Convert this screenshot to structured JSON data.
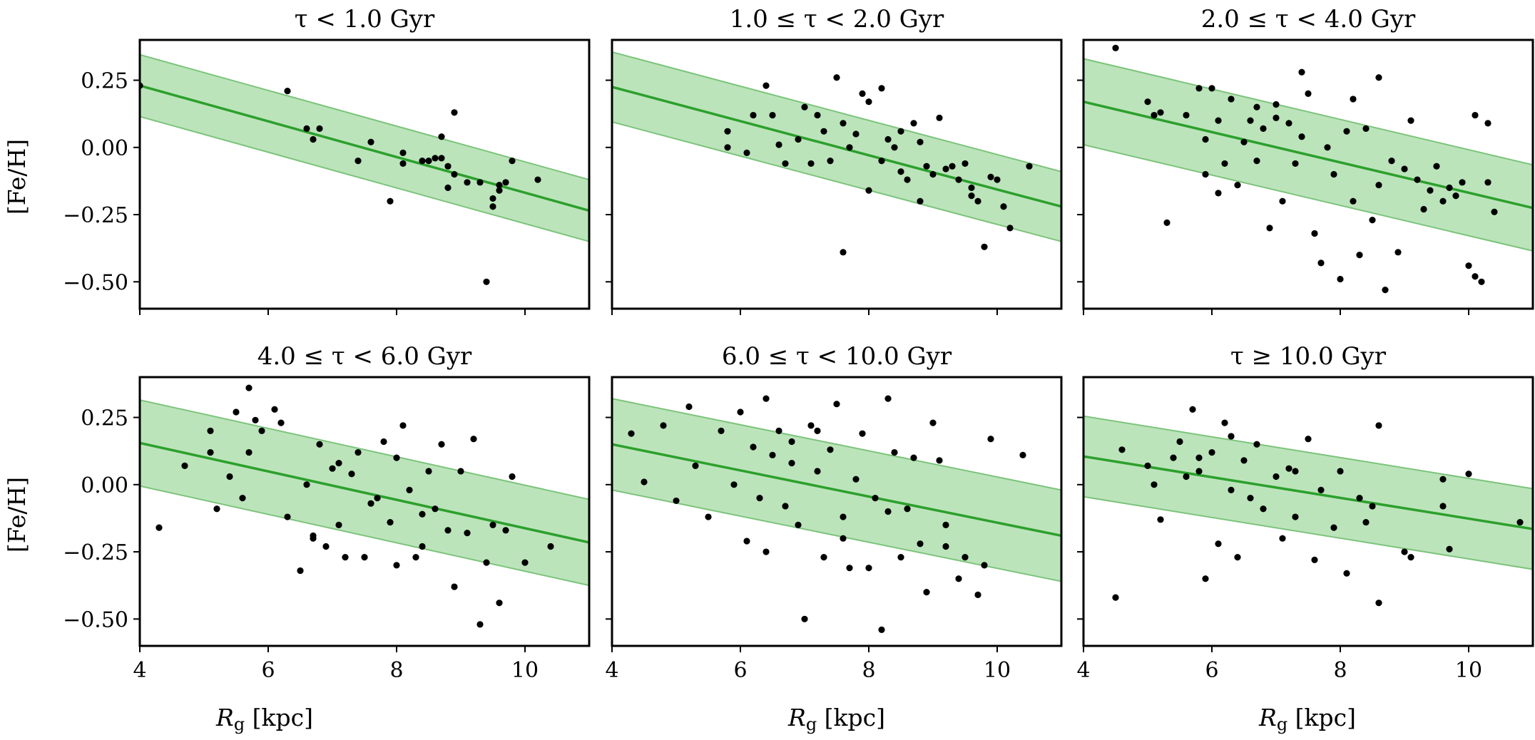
{
  "chart_data": {
    "type": "scatter",
    "layout": "2x3 grid, shared x-axis per column, shared y-axis per row",
    "xlabel": "R_g [kpc]",
    "ylabel": "[Fe/H]",
    "xlim": [
      4,
      11
    ],
    "ylim": [
      -0.6,
      0.4
    ],
    "xticks": [
      4,
      6,
      8,
      10
    ],
    "yticks": [
      -0.5,
      -0.25,
      0.0,
      0.25
    ],
    "ytick_labels": [
      "−0.50",
      "−0.25",
      "0.00",
      "0.25"
    ],
    "grid": false,
    "legend": "none",
    "colors": {
      "fit_line": "#2ca02c",
      "band": "#98d597",
      "points": "#000000"
    },
    "panels": [
      {
        "title": "τ < 1.0 Gyr",
        "fit": {
          "x": [
            4,
            11
          ],
          "y": [
            0.23,
            -0.235
          ],
          "band_halfwidth": 0.115
        },
        "points": [
          [
            4.0,
            0.23
          ],
          [
            6.3,
            0.21
          ],
          [
            6.6,
            0.07
          ],
          [
            6.8,
            0.07
          ],
          [
            6.7,
            0.03
          ],
          [
            7.4,
            -0.05
          ],
          [
            7.9,
            -0.2
          ],
          [
            7.6,
            0.02
          ],
          [
            8.1,
            -0.06
          ],
          [
            8.1,
            -0.02
          ],
          [
            8.4,
            -0.05
          ],
          [
            8.5,
            -0.05
          ],
          [
            8.6,
            -0.04
          ],
          [
            8.7,
            -0.04
          ],
          [
            8.7,
            0.04
          ],
          [
            8.8,
            -0.07
          ],
          [
            8.8,
            -0.15
          ],
          [
            8.9,
            -0.1
          ],
          [
            8.9,
            0.13
          ],
          [
            9.1,
            -0.13
          ],
          [
            9.3,
            -0.13
          ],
          [
            9.4,
            -0.5
          ],
          [
            9.5,
            -0.19
          ],
          [
            9.5,
            -0.22
          ],
          [
            9.6,
            -0.16
          ],
          [
            9.6,
            -0.14
          ],
          [
            9.7,
            -0.13
          ],
          [
            9.8,
            -0.05
          ],
          [
            10.2,
            -0.12
          ]
        ]
      },
      {
        "title": "1.0 ≤ τ < 2.0 Gyr",
        "fit": {
          "x": [
            4,
            11
          ],
          "y": [
            0.225,
            -0.22
          ],
          "band_halfwidth": 0.13
        },
        "points": [
          [
            5.8,
            0.06
          ],
          [
            5.8,
            0.0
          ],
          [
            6.4,
            0.23
          ],
          [
            6.5,
            0.12
          ],
          [
            6.6,
            0.01
          ],
          [
            7.0,
            0.15
          ],
          [
            7.2,
            0.12
          ],
          [
            7.3,
            0.06
          ],
          [
            7.5,
            0.26
          ],
          [
            7.6,
            0.09
          ],
          [
            7.7,
            0.0
          ],
          [
            7.8,
            0.05
          ],
          [
            7.9,
            0.2
          ],
          [
            8.0,
            0.17
          ],
          [
            8.2,
            0.22
          ],
          [
            8.2,
            -0.05
          ],
          [
            8.3,
            0.03
          ],
          [
            8.4,
            0.0
          ],
          [
            8.5,
            -0.09
          ],
          [
            8.5,
            0.06
          ],
          [
            8.6,
            -0.12
          ],
          [
            8.7,
            0.09
          ],
          [
            8.8,
            0.02
          ],
          [
            8.9,
            -0.07
          ],
          [
            9.0,
            -0.1
          ],
          [
            9.1,
            0.11
          ],
          [
            9.2,
            -0.08
          ],
          [
            9.3,
            -0.07
          ],
          [
            9.4,
            -0.12
          ],
          [
            9.5,
            -0.06
          ],
          [
            9.6,
            -0.15
          ],
          [
            9.7,
            -0.2
          ],
          [
            9.8,
            -0.37
          ],
          [
            9.9,
            -0.11
          ],
          [
            10.0,
            -0.12
          ],
          [
            10.1,
            -0.22
          ],
          [
            10.2,
            -0.3
          ],
          [
            10.5,
            -0.07
          ],
          [
            7.6,
            -0.39
          ],
          [
            7.1,
            -0.06
          ],
          [
            7.4,
            -0.05
          ],
          [
            6.2,
            0.12
          ],
          [
            6.1,
            -0.02
          ],
          [
            6.7,
            -0.06
          ],
          [
            6.9,
            0.03
          ],
          [
            8.0,
            -0.16
          ],
          [
            8.8,
            -0.2
          ],
          [
            9.6,
            -0.18
          ]
        ]
      },
      {
        "title": "2.0 ≤ τ < 4.0 Gyr",
        "fit": {
          "x": [
            4,
            11
          ],
          "y": [
            0.17,
            -0.225
          ],
          "band_halfwidth": 0.16
        },
        "points": [
          [
            4.5,
            0.37
          ],
          [
            5.0,
            0.17
          ],
          [
            5.1,
            0.12
          ],
          [
            5.2,
            0.13
          ],
          [
            5.3,
            -0.28
          ],
          [
            5.6,
            0.12
          ],
          [
            5.8,
            0.22
          ],
          [
            5.9,
            0.03
          ],
          [
            6.0,
            0.22
          ],
          [
            6.1,
            -0.17
          ],
          [
            6.2,
            -0.06
          ],
          [
            6.3,
            0.18
          ],
          [
            6.4,
            -0.14
          ],
          [
            6.5,
            0.02
          ],
          [
            6.6,
            0.1
          ],
          [
            6.7,
            -0.05
          ],
          [
            6.8,
            0.07
          ],
          [
            6.9,
            -0.3
          ],
          [
            7.0,
            0.11
          ],
          [
            7.1,
            -0.2
          ],
          [
            7.2,
            0.09
          ],
          [
            7.3,
            -0.06
          ],
          [
            7.4,
            0.04
          ],
          [
            7.5,
            0.2
          ],
          [
            7.6,
            -0.32
          ],
          [
            7.7,
            -0.43
          ],
          [
            7.8,
            0.0
          ],
          [
            7.9,
            -0.1
          ],
          [
            8.0,
            -0.49
          ],
          [
            8.1,
            0.06
          ],
          [
            8.2,
            -0.2
          ],
          [
            8.3,
            -0.4
          ],
          [
            8.4,
            0.07
          ],
          [
            8.5,
            -0.27
          ],
          [
            8.6,
            -0.14
          ],
          [
            8.7,
            -0.53
          ],
          [
            8.8,
            -0.05
          ],
          [
            8.9,
            -0.39
          ],
          [
            9.0,
            -0.08
          ],
          [
            9.1,
            0.1
          ],
          [
            9.2,
            -0.12
          ],
          [
            9.3,
            -0.23
          ],
          [
            9.4,
            -0.16
          ],
          [
            9.5,
            -0.07
          ],
          [
            9.6,
            -0.2
          ],
          [
            9.7,
            -0.15
          ],
          [
            9.8,
            -0.18
          ],
          [
            9.9,
            -0.13
          ],
          [
            10.0,
            -0.44
          ],
          [
            10.1,
            -0.48
          ],
          [
            10.2,
            -0.5
          ],
          [
            10.3,
            -0.13
          ],
          [
            10.4,
            -0.24
          ],
          [
            10.1,
            0.12
          ],
          [
            10.3,
            0.09
          ],
          [
            7.4,
            0.28
          ],
          [
            7.0,
            0.16
          ],
          [
            6.7,
            0.15
          ],
          [
            8.6,
            0.26
          ],
          [
            6.1,
            0.1
          ],
          [
            5.9,
            -0.1
          ],
          [
            8.2,
            0.18
          ]
        ]
      },
      {
        "title": "4.0 ≤ τ < 6.0 Gyr",
        "fit": {
          "x": [
            4,
            11
          ],
          "y": [
            0.155,
            -0.215
          ],
          "band_halfwidth": 0.16
        },
        "points": [
          [
            4.3,
            -0.16
          ],
          [
            4.7,
            0.07
          ],
          [
            5.1,
            0.2
          ],
          [
            5.1,
            0.12
          ],
          [
            5.2,
            -0.09
          ],
          [
            5.4,
            0.03
          ],
          [
            5.5,
            0.27
          ],
          [
            5.6,
            -0.05
          ],
          [
            5.7,
            0.36
          ],
          [
            5.7,
            0.12
          ],
          [
            5.8,
            0.24
          ],
          [
            5.9,
            0.2
          ],
          [
            6.1,
            0.28
          ],
          [
            6.2,
            0.23
          ],
          [
            6.3,
            -0.12
          ],
          [
            6.5,
            -0.32
          ],
          [
            6.6,
            0.0
          ],
          [
            6.7,
            -0.2
          ],
          [
            6.8,
            0.15
          ],
          [
            6.9,
            -0.23
          ],
          [
            7.0,
            0.06
          ],
          [
            7.1,
            -0.15
          ],
          [
            7.2,
            -0.27
          ],
          [
            7.3,
            0.04
          ],
          [
            7.4,
            0.12
          ],
          [
            7.5,
            -0.27
          ],
          [
            7.6,
            -0.07
          ],
          [
            7.7,
            -0.05
          ],
          [
            7.8,
            0.16
          ],
          [
            7.9,
            -0.14
          ],
          [
            8.0,
            -0.3
          ],
          [
            8.1,
            0.22
          ],
          [
            8.2,
            -0.02
          ],
          [
            8.3,
            -0.27
          ],
          [
            8.4,
            -0.23
          ],
          [
            8.5,
            0.05
          ],
          [
            8.6,
            -0.09
          ],
          [
            8.7,
            0.15
          ],
          [
            8.8,
            -0.17
          ],
          [
            8.9,
            -0.38
          ],
          [
            9.0,
            0.05
          ],
          [
            9.1,
            -0.18
          ],
          [
            9.2,
            0.17
          ],
          [
            9.3,
            -0.52
          ],
          [
            9.4,
            -0.29
          ],
          [
            9.5,
            -0.15
          ],
          [
            9.6,
            -0.44
          ],
          [
            9.7,
            -0.17
          ],
          [
            9.8,
            0.03
          ],
          [
            10.0,
            -0.29
          ],
          [
            10.4,
            -0.23
          ],
          [
            6.7,
            -0.19
          ],
          [
            7.1,
            0.08
          ],
          [
            8.0,
            0.1
          ],
          [
            8.4,
            -0.11
          ]
        ]
      },
      {
        "title": "6.0 ≤ τ < 10.0 Gyr",
        "fit": {
          "x": [
            4,
            11
          ],
          "y": [
            0.15,
            -0.19
          ],
          "band_halfwidth": 0.17
        },
        "points": [
          [
            4.3,
            0.19
          ],
          [
            4.5,
            0.01
          ],
          [
            4.8,
            0.22
          ],
          [
            5.0,
            -0.06
          ],
          [
            5.2,
            0.29
          ],
          [
            5.3,
            0.07
          ],
          [
            5.5,
            -0.12
          ],
          [
            5.7,
            0.2
          ],
          [
            5.9,
            0.0
          ],
          [
            6.0,
            0.27
          ],
          [
            6.1,
            -0.21
          ],
          [
            6.2,
            0.14
          ],
          [
            6.3,
            -0.05
          ],
          [
            6.4,
            0.32
          ],
          [
            6.5,
            0.11
          ],
          [
            6.6,
            0.2
          ],
          [
            6.7,
            -0.08
          ],
          [
            6.8,
            0.16
          ],
          [
            6.9,
            -0.15
          ],
          [
            7.0,
            -0.5
          ],
          [
            7.1,
            0.22
          ],
          [
            7.2,
            0.05
          ],
          [
            7.3,
            -0.27
          ],
          [
            7.4,
            0.13
          ],
          [
            7.5,
            0.3
          ],
          [
            7.6,
            -0.12
          ],
          [
            7.7,
            -0.31
          ],
          [
            7.8,
            0.02
          ],
          [
            7.9,
            0.19
          ],
          [
            8.0,
            -0.31
          ],
          [
            8.1,
            -0.05
          ],
          [
            8.2,
            -0.54
          ],
          [
            8.3,
            -0.1
          ],
          [
            8.4,
            0.12
          ],
          [
            8.5,
            -0.27
          ],
          [
            8.6,
            -0.09
          ],
          [
            8.7,
            0.1
          ],
          [
            8.8,
            -0.22
          ],
          [
            8.9,
            -0.4
          ],
          [
            9.0,
            0.23
          ],
          [
            9.1,
            0.09
          ],
          [
            9.2,
            -0.15
          ],
          [
            9.4,
            -0.35
          ],
          [
            9.5,
            -0.27
          ],
          [
            9.7,
            -0.41
          ],
          [
            9.9,
            0.17
          ],
          [
            10.4,
            0.11
          ],
          [
            6.4,
            -0.25
          ],
          [
            6.8,
            0.08
          ],
          [
            7.2,
            0.2
          ],
          [
            7.6,
            -0.2
          ],
          [
            8.3,
            0.32
          ],
          [
            9.2,
            -0.23
          ],
          [
            9.8,
            -0.3
          ]
        ]
      },
      {
        "title": "τ ≥ 10.0 Gyr",
        "fit": {
          "x": [
            4,
            11
          ],
          "y": [
            0.105,
            -0.165
          ],
          "band_halfwidth": 0.15
        },
        "points": [
          [
            4.5,
            -0.42
          ],
          [
            4.6,
            0.13
          ],
          [
            5.0,
            0.07
          ],
          [
            5.2,
            -0.13
          ],
          [
            5.4,
            0.1
          ],
          [
            5.5,
            0.16
          ],
          [
            5.6,
            0.03
          ],
          [
            5.7,
            0.28
          ],
          [
            5.8,
            0.1
          ],
          [
            5.9,
            -0.35
          ],
          [
            6.0,
            0.12
          ],
          [
            6.1,
            -0.22
          ],
          [
            6.2,
            0.23
          ],
          [
            6.3,
            -0.02
          ],
          [
            6.4,
            -0.27
          ],
          [
            6.5,
            0.09
          ],
          [
            6.6,
            -0.05
          ],
          [
            6.7,
            0.15
          ],
          [
            6.8,
            -0.09
          ],
          [
            7.0,
            0.03
          ],
          [
            7.1,
            -0.2
          ],
          [
            7.2,
            0.06
          ],
          [
            7.3,
            -0.12
          ],
          [
            7.5,
            0.17
          ],
          [
            7.6,
            -0.28
          ],
          [
            7.7,
            -0.02
          ],
          [
            7.9,
            -0.16
          ],
          [
            8.0,
            0.05
          ],
          [
            8.1,
            -0.33
          ],
          [
            8.3,
            -0.05
          ],
          [
            8.5,
            -0.08
          ],
          [
            8.6,
            0.22
          ],
          [
            8.6,
            -0.44
          ],
          [
            9.0,
            -0.25
          ],
          [
            9.1,
            -0.27
          ],
          [
            9.6,
            -0.08
          ],
          [
            9.7,
            -0.24
          ],
          [
            10.0,
            0.04
          ],
          [
            10.8,
            -0.14
          ],
          [
            5.1,
            0.0
          ],
          [
            5.8,
            0.05
          ],
          [
            6.3,
            0.18
          ],
          [
            7.3,
            0.05
          ],
          [
            8.4,
            -0.14
          ],
          [
            9.6,
            0.02
          ]
        ]
      }
    ]
  },
  "figure": {
    "ylabel_text": "[Fe/H]",
    "xlabel_main": "R",
    "xlabel_sub": "g",
    "xlabel_unit": " [kpc]"
  }
}
